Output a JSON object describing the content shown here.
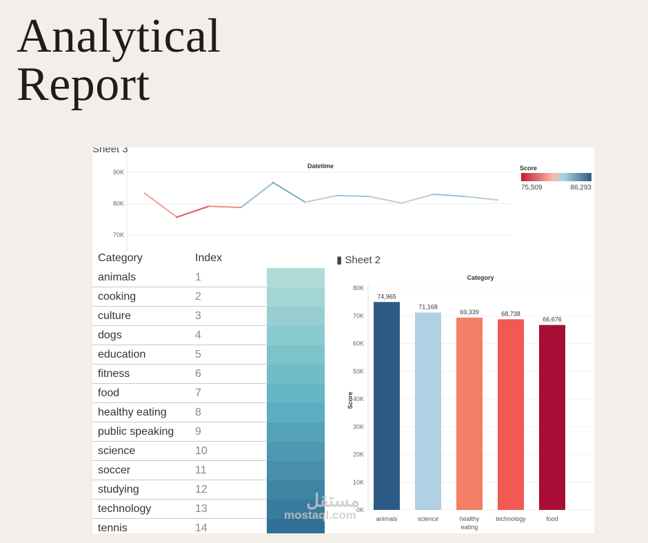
{
  "title_lines": [
    "Analytical",
    "Report"
  ],
  "sheet3_label": "Sheet 3",
  "sheet2_label": "Sheet 2",
  "watermark": {
    "arabic": "مستقل",
    "latin": "mostaql.com"
  },
  "colors": {
    "background": "#f2efea",
    "low": "#c51d33",
    "mid": "#f7b8a8",
    "high": "#2c5a85"
  },
  "chart_data": [
    {
      "type": "line",
      "title": "Datetime",
      "ylim": [
        65000,
        90000
      ],
      "yticks": [
        "90K",
        "80K",
        "70K"
      ],
      "ytick_values": [
        90000,
        80000,
        70000
      ],
      "values": [
        83300,
        75700,
        79200,
        78800,
        86700,
        80500,
        82600,
        82300,
        80200,
        83000,
        82300,
        81200
      ],
      "legend": {
        "title": "Score",
        "min_label": "75,509",
        "max_label": "86,293",
        "min": 75509,
        "max": 86293,
        "position": "top-right"
      }
    },
    {
      "type": "table",
      "columns": [
        "Category",
        "Index"
      ],
      "rows": [
        {
          "category": "animals",
          "index": "1",
          "shade": 0.05
        },
        {
          "category": "cooking",
          "index": "2",
          "shade": 0.12
        },
        {
          "category": "culture",
          "index": "3",
          "shade": 0.19
        },
        {
          "category": "dogs",
          "index": "4",
          "shade": 0.26
        },
        {
          "category": "education",
          "index": "5",
          "shade": 0.33
        },
        {
          "category": "fitness",
          "index": "6",
          "shade": 0.4
        },
        {
          "category": "food",
          "index": "7",
          "shade": 0.47
        },
        {
          "category": "healthy eating",
          "index": "8",
          "shade": 0.54
        },
        {
          "category": "public speaking",
          "index": "9",
          "shade": 0.61
        },
        {
          "category": "science",
          "index": "10",
          "shade": 0.68
        },
        {
          "category": "soccer",
          "index": "11",
          "shade": 0.75
        },
        {
          "category": "studying",
          "index": "12",
          "shade": 0.82
        },
        {
          "category": "technology",
          "index": "13",
          "shade": 0.89
        },
        {
          "category": "tennis",
          "index": "14",
          "shade": 0.96
        }
      ]
    },
    {
      "type": "bar",
      "title": "Category",
      "ylabel": "Score",
      "ylim": [
        0,
        80000
      ],
      "yticks": [
        "80K",
        "70K",
        "60K",
        "50K",
        "40K",
        "30K",
        "20K",
        "10K",
        "0K"
      ],
      "categories": [
        "animals",
        "science",
        "healthy eating",
        "technology",
        "food"
      ],
      "values": [
        74965,
        71168,
        69339,
        68738,
        66676
      ],
      "labels": [
        "74,965",
        "71,168",
        "69,339",
        "68,738",
        "66,676"
      ],
      "bar_colors": [
        "#2c5a85",
        "#b0d0e4",
        "#f47e66",
        "#f05a52",
        "#a80d35"
      ]
    }
  ]
}
